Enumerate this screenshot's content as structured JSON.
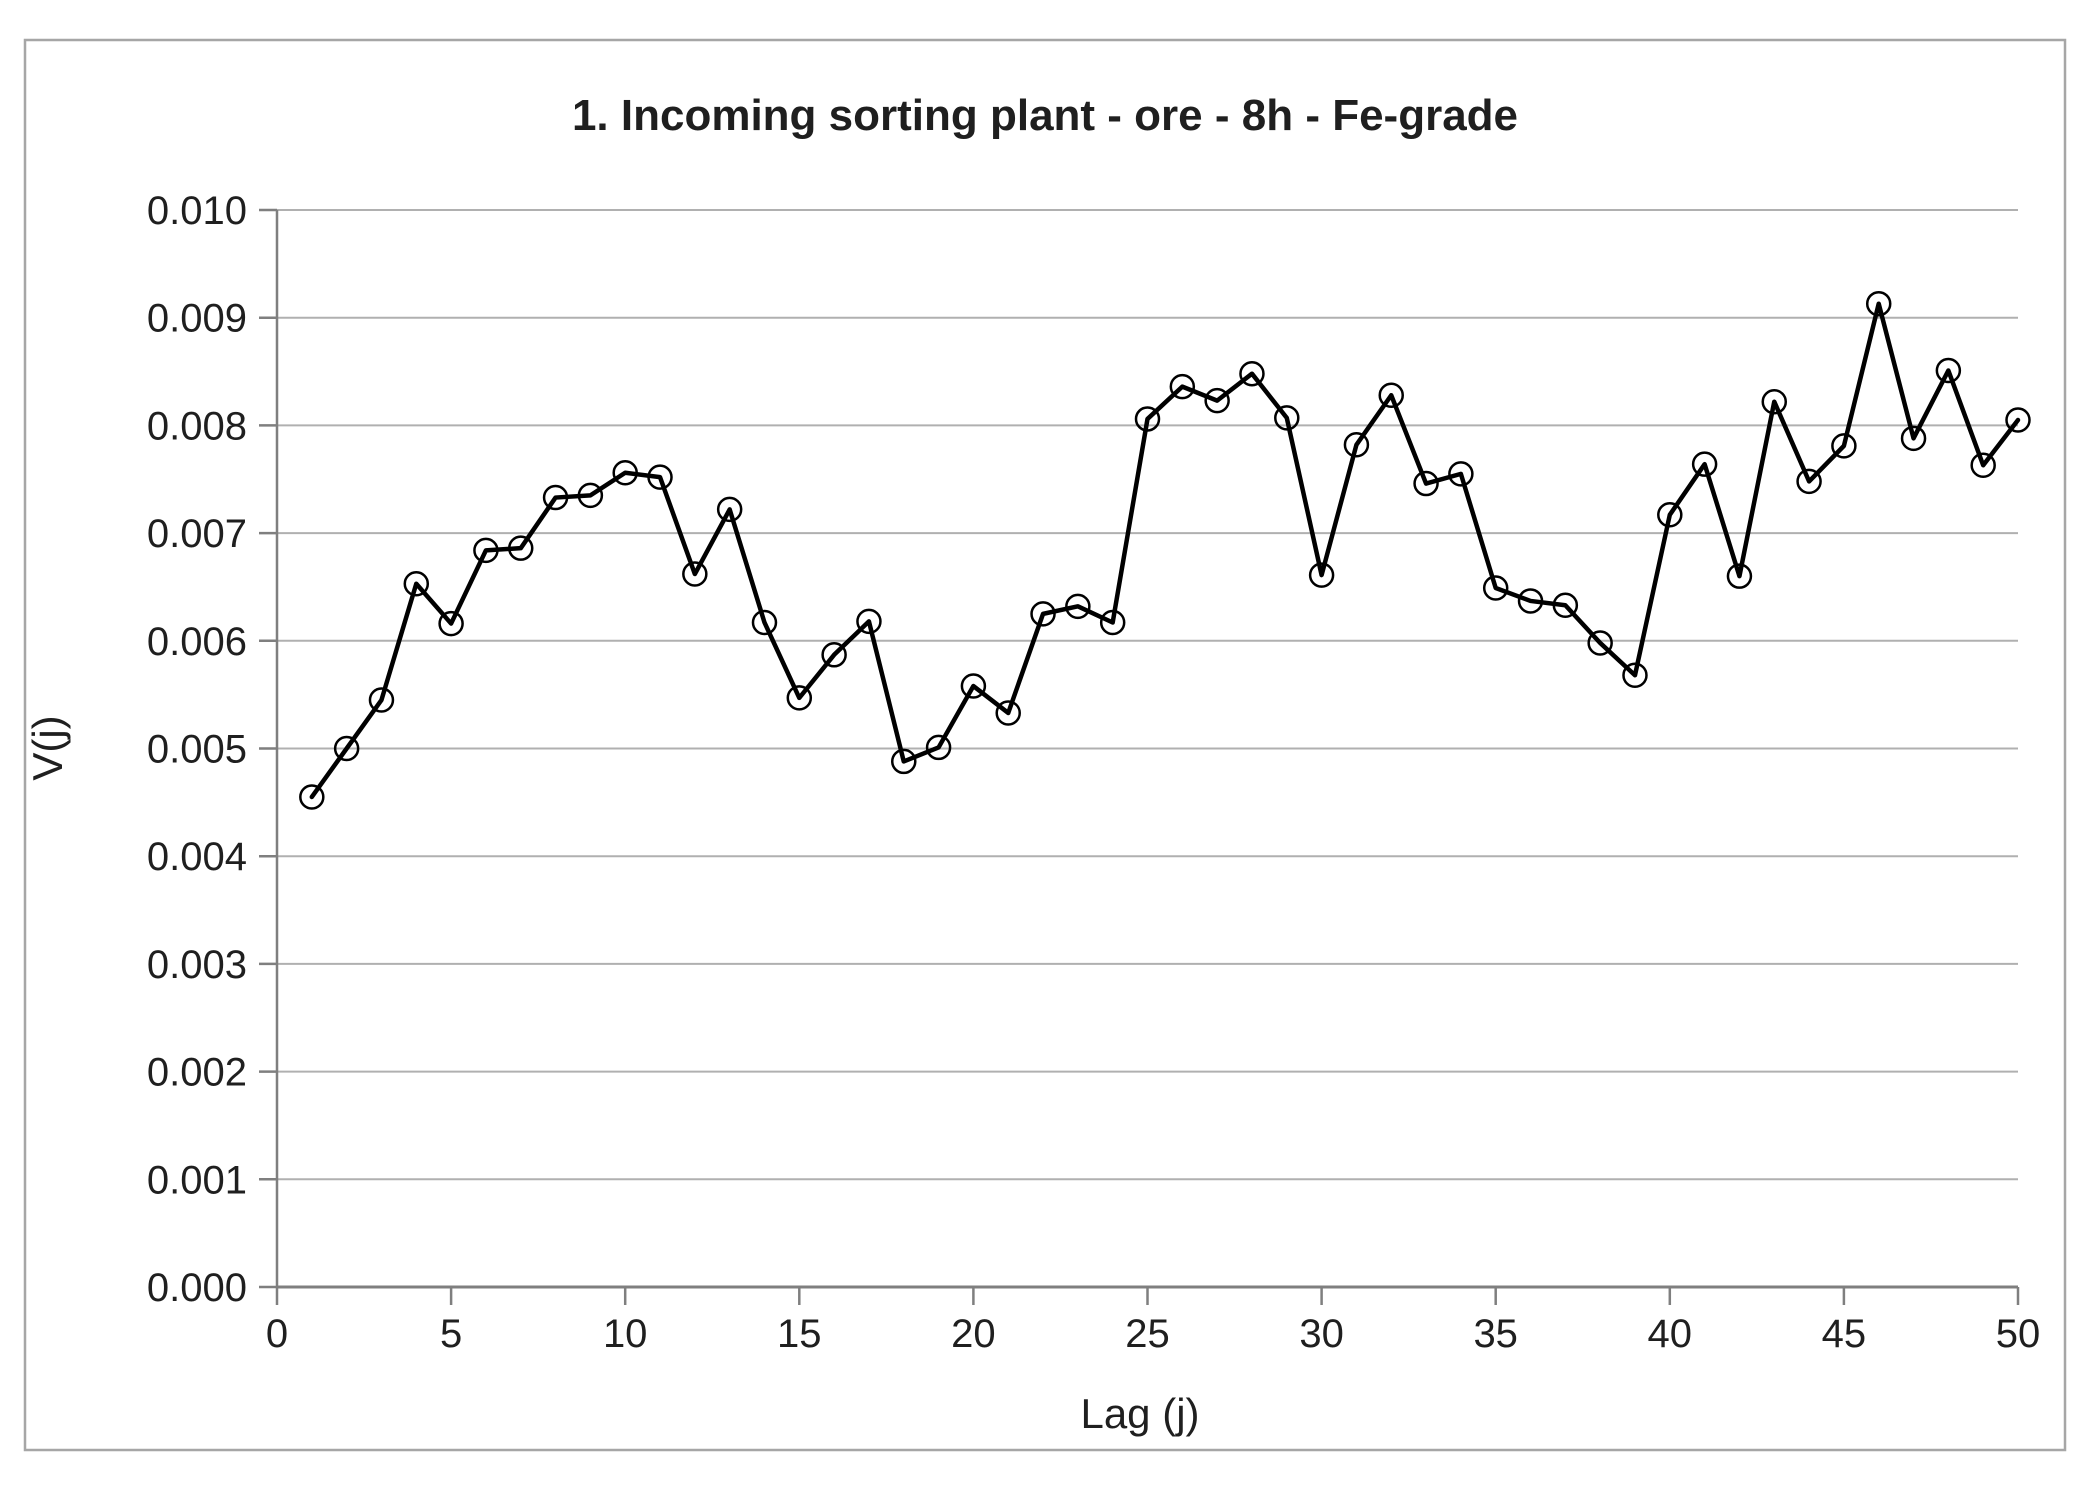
{
  "chart_data": {
    "type": "line",
    "title": "1. Incoming sorting plant - ore - 8h - Fe-grade",
    "xlabel": "Lag (j)",
    "ylabel": "V(j)",
    "x": [
      1,
      2,
      3,
      4,
      5,
      6,
      7,
      8,
      9,
      10,
      11,
      12,
      13,
      14,
      15,
      16,
      17,
      18,
      19,
      20,
      21,
      22,
      23,
      24,
      25,
      26,
      27,
      28,
      29,
      30,
      31,
      32,
      33,
      34,
      35,
      36,
      37,
      38,
      39,
      40,
      41,
      42,
      43,
      44,
      45,
      46,
      47,
      48,
      49,
      50
    ],
    "series": [
      {
        "name": "V(j)",
        "values": [
          0.00455,
          0.005,
          0.00545,
          0.00653,
          0.00616,
          0.00684,
          0.00686,
          0.00733,
          0.00735,
          0.00756,
          0.00752,
          0.00662,
          0.00722,
          0.00617,
          0.00547,
          0.00587,
          0.00618,
          0.00488,
          0.00501,
          0.00558,
          0.00533,
          0.00625,
          0.00632,
          0.00617,
          0.00806,
          0.00836,
          0.00823,
          0.00848,
          0.00807,
          0.00661,
          0.00782,
          0.00828,
          0.00746,
          0.00755,
          0.00649,
          0.00637,
          0.00633,
          0.00598,
          0.00568,
          0.00717,
          0.00764,
          0.0066,
          0.00822,
          0.00748,
          0.00781,
          0.00913,
          0.00788,
          0.00851,
          0.00763,
          0.00805
        ]
      }
    ],
    "xlim": [
      0,
      50
    ],
    "ylim": [
      0,
      0.01
    ],
    "xticks": [
      0,
      5,
      10,
      15,
      20,
      25,
      30,
      35,
      40,
      45,
      50
    ],
    "xtick_labels": [
      "0",
      "5",
      "10",
      "15",
      "20",
      "25",
      "30",
      "35",
      "40",
      "45",
      "50"
    ],
    "yticks": [
      0,
      0.001,
      0.002,
      0.003,
      0.004,
      0.005,
      0.006,
      0.007,
      0.008,
      0.009,
      0.01
    ],
    "ytick_labels": [
      "0.000",
      "0.001",
      "0.002",
      "0.003",
      "0.004",
      "0.005",
      "0.006",
      "0.007",
      "0.008",
      "0.009",
      "0.010"
    ],
    "grid": "horizontal",
    "legend": "none",
    "marker": "open-circle",
    "line_color": "#000000",
    "gridline_color": "#b0b0b0",
    "axis_color": "#7f7f7f",
    "text_color": "#1f1f1f",
    "border_color": "#a6a6a6"
  }
}
